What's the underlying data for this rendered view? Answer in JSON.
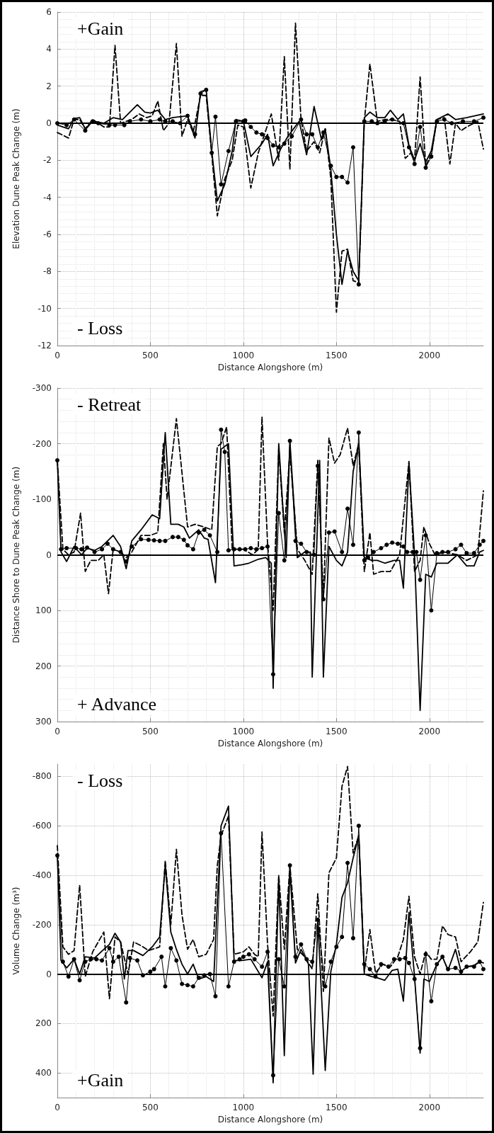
{
  "chart_data": [
    {
      "type": "line",
      "xlabel": "Distance Alongshore (m)",
      "ylabel": "Elevation Dune Peak Change (m)",
      "xlim": [
        0,
        2290
      ],
      "xticks": [
        0,
        500,
        1000,
        1500,
        2000
      ],
      "ylim": [
        -12,
        6
      ],
      "yticks": [
        -12,
        -10,
        -8,
        -6,
        -4,
        -2,
        0,
        2,
        4,
        6
      ],
      "grid": true,
      "annotations": [
        "+Gain",
        "- Loss"
      ],
      "ref_lines": [
        {
          "axis": "y",
          "value": 0,
          "color": "#000000"
        }
      ],
      "series": [
        {
          "color": "#000000",
          "line_style": "solid",
          "marker": "none",
          "x": [
            0,
            60,
            90,
            120,
            150,
            190,
            250,
            300,
            350,
            430,
            470,
            500,
            540,
            580,
            620,
            700,
            740,
            770,
            800,
            830,
            860,
            900,
            940,
            960,
            1000,
            1040,
            1100,
            1130,
            1160,
            1200,
            1240,
            1300,
            1340,
            1380,
            1420,
            1440,
            1470,
            1500,
            1530,
            1560,
            1590,
            1620,
            1650,
            1680,
            1720,
            1760,
            1790,
            1830,
            1860,
            1890,
            1920,
            1950,
            1980,
            2010,
            2040,
            2100,
            2140,
            2200,
            2290
          ],
          "values": [
            -0.1,
            -0.3,
            0.25,
            0.3,
            -0.3,
            0.1,
            0,
            0.3,
            0.2,
            1.0,
            0.6,
            0.55,
            0.7,
            0.2,
            0.3,
            0.4,
            -0.8,
            1.7,
            1.8,
            -1.5,
            -4.2,
            -3.3,
            -1.5,
            0.2,
            0.1,
            -1.8,
            -1.1,
            -0.6,
            -2.3,
            -1.4,
            -0.7,
            0.1,
            -1.7,
            0.9,
            -0.9,
            -0.3,
            -2.5,
            -6,
            -8.7,
            -6.9,
            -8.0,
            -8.5,
            0.3,
            0.6,
            0.3,
            0.3,
            0.7,
            0.2,
            0.5,
            -1.2,
            -2.0,
            -1.1,
            -2.1,
            -1.5,
            0.2,
            0.5,
            0.2,
            0.3,
            0.5
          ]
        },
        {
          "color": "#000000",
          "line_style": "dashed",
          "marker": "none",
          "x": [
            0,
            60,
            90,
            120,
            150,
            190,
            250,
            280,
            310,
            340,
            400,
            440,
            480,
            510,
            540,
            570,
            600,
            640,
            670,
            700,
            730,
            770,
            800,
            830,
            860,
            900,
            940,
            970,
            1000,
            1040,
            1080,
            1120,
            1150,
            1190,
            1220,
            1250,
            1280,
            1310,
            1340,
            1380,
            1410,
            1440,
            1470,
            1500,
            1530,
            1560,
            1590,
            1620,
            1650,
            1680,
            1720,
            1760,
            1800,
            1840,
            1870,
            1900,
            1920,
            1950,
            1980,
            2010,
            2040,
            2080,
            2110,
            2140,
            2170,
            2200,
            2260,
            2290
          ],
          "values": [
            -0.5,
            -0.8,
            0.2,
            0.2,
            -0.3,
            0.2,
            -0.2,
            -0.2,
            4.2,
            0.0,
            0.2,
            0.5,
            0.3,
            0.4,
            1.2,
            -0.4,
            0.0,
            4.3,
            -0.7,
            0.2,
            -0.5,
            1.5,
            1.5,
            -1.7,
            -5.0,
            -3.0,
            -2.0,
            -0.1,
            -0.2,
            -3.5,
            -1.6,
            -0.4,
            0.5,
            -2.0,
            3.6,
            -2.5,
            5.4,
            0.2,
            -1.5,
            -1.0,
            -1.6,
            -0.3,
            -3.0,
            -10.2,
            -6.9,
            -6.8,
            -8.5,
            -8.6,
            0.1,
            3.2,
            0.1,
            0.2,
            0.2,
            0.1,
            -1.9,
            -1.6,
            -2.0,
            2.5,
            -2.3,
            -1.7,
            0.2,
            0.3,
            -2.2,
            0.0,
            -0.4,
            -0.2,
            0.1,
            -1.4
          ]
        },
        {
          "color": "#000000",
          "line_style": "solid",
          "marker": "circle",
          "x": [
            0,
            50,
            90,
            150,
            190,
            220,
            280,
            310,
            360,
            390,
            450,
            500,
            550,
            580,
            620,
            660,
            700,
            740,
            770,
            800,
            830,
            850,
            880,
            920,
            960,
            1000,
            1010,
            1040,
            1070,
            1100,
            1130,
            1160,
            1190,
            1220,
            1260,
            1310,
            1340,
            1370,
            1400,
            1430,
            1470,
            1500,
            1530,
            1560,
            1590,
            1620,
            1650,
            1690,
            1720,
            1760,
            1800,
            1860,
            1890,
            1920,
            1950,
            1980,
            2010,
            2040,
            2080,
            2120,
            2180,
            2240,
            2290
          ],
          "values": [
            0,
            -0.1,
            0.2,
            -0.4,
            0.1,
            0.0,
            -0.1,
            -0.1,
            -0.1,
            0.1,
            0.2,
            0.1,
            0.2,
            0.1,
            0.1,
            0.0,
            0.4,
            -0.6,
            1.6,
            1.8,
            -1.6,
            0.35,
            -3.3,
            -1.5,
            0.1,
            0.1,
            0.15,
            -0.2,
            -0.5,
            -0.6,
            -0.8,
            -1.2,
            -1.3,
            -1.1,
            -0.7,
            0.2,
            -0.6,
            -0.6,
            -1.3,
            -0.5,
            -2.3,
            -2.9,
            -2.9,
            -3.2,
            -1.3,
            -8.7,
            0.1,
            0.1,
            0.0,
            0.1,
            0.2,
            0.0,
            -1.3,
            -2.2,
            -0.2,
            -2.4,
            -1.8,
            0.1,
            0.2,
            0.0,
            0.1,
            0.1,
            0.3
          ]
        }
      ]
    },
    {
      "type": "line",
      "xlabel": "Distance Alongshore (m)",
      "ylabel": "Distance Shore to Dune Peak Change (m)",
      "xlim": [
        0,
        2290
      ],
      "xticks": [
        0,
        500,
        1000,
        1500,
        2000
      ],
      "ylim": [
        300,
        -300
      ],
      "yticks": [
        -300,
        -200,
        -100,
        0,
        100,
        200,
        300
      ],
      "grid": true,
      "annotations": [
        "- Retreat",
        "+ Advance"
      ],
      "ref_lines": [
        {
          "axis": "y",
          "value": 0,
          "color": "#000000"
        }
      ],
      "series": [
        {
          "color": "#000000",
          "line_style": "solid",
          "marker": "none",
          "x": [
            0,
            20,
            50,
            90,
            130,
            160,
            200,
            240,
            300,
            340,
            370,
            400,
            450,
            510,
            550,
            580,
            610,
            650,
            680,
            710,
            760,
            790,
            810,
            850,
            880,
            920,
            950,
            990,
            1030,
            1080,
            1120,
            1150,
            1160,
            1190,
            1230,
            1250,
            1290,
            1330,
            1360,
            1370,
            1410,
            1430,
            1460,
            1500,
            1530,
            1560,
            1590,
            1620,
            1650,
            1690,
            1720,
            1760,
            1810,
            1840,
            1860,
            1890,
            1920,
            1950,
            1980,
            2010,
            2040,
            2100,
            2150,
            2200,
            2240,
            2270,
            2290
          ],
          "values": [
            -170,
            -5,
            12,
            -15,
            0,
            -12,
            -8,
            -15,
            -35,
            -15,
            25,
            -25,
            -45,
            -72,
            -65,
            -220,
            -55,
            -55,
            -50,
            -30,
            -45,
            -30,
            -28,
            50,
            -190,
            -200,
            20,
            18,
            15,
            8,
            5,
            15,
            240,
            -200,
            5,
            -205,
            5,
            -5,
            -5,
            220,
            -170,
            220,
            -15,
            10,
            20,
            -5,
            -150,
            -200,
            5,
            10,
            10,
            15,
            10,
            10,
            60,
            -165,
            0,
            280,
            35,
            40,
            15,
            15,
            0,
            20,
            20,
            -5,
            -8
          ]
        },
        {
          "color": "#000000",
          "line_style": "dashed",
          "marker": "none",
          "x": [
            0,
            30,
            60,
            90,
            125,
            150,
            180,
            220,
            250,
            275,
            300,
            340,
            370,
            400,
            450,
            500,
            540,
            570,
            590,
            640,
            700,
            740,
            790,
            830,
            860,
            880,
            910,
            940,
            1000,
            1050,
            1080,
            1100,
            1130,
            1160,
            1190,
            1220,
            1250,
            1290,
            1330,
            1370,
            1400,
            1430,
            1460,
            1490,
            1520,
            1560,
            1590,
            1620,
            1650,
            1680,
            1700,
            1740,
            1790,
            1840,
            1890,
            1920,
            1950,
            1970,
            2000,
            2030,
            2080,
            2150,
            2200,
            2260,
            2290
          ],
          "values": [
            -170,
            -10,
            0,
            -5,
            -75,
            30,
            10,
            10,
            0,
            70,
            -10,
            -5,
            5,
            -5,
            -35,
            -35,
            -40,
            -200,
            -100,
            -245,
            -50,
            -55,
            -50,
            -45,
            -195,
            -200,
            -230,
            -10,
            -10,
            0,
            -10,
            -248,
            -20,
            100,
            -190,
            -40,
            -185,
            -10,
            10,
            35,
            -170,
            80,
            -210,
            -165,
            -180,
            -228,
            -160,
            -200,
            30,
            -40,
            35,
            30,
            30,
            0,
            -168,
            30,
            10,
            -50,
            -20,
            0,
            -5,
            0,
            10,
            0,
            -115
          ]
        },
        {
          "color": "#000000",
          "line_style": "solid",
          "marker": "circle",
          "x": [
            0,
            20,
            50,
            100,
            130,
            160,
            200,
            240,
            270,
            300,
            340,
            370,
            400,
            450,
            490,
            520,
            550,
            580,
            620,
            650,
            680,
            700,
            730,
            760,
            790,
            820,
            860,
            880,
            900,
            920,
            950,
            980,
            1010,
            1040,
            1070,
            1100,
            1130,
            1160,
            1190,
            1220,
            1250,
            1280,
            1310,
            1340,
            1380,
            1400,
            1430,
            1460,
            1490,
            1530,
            1560,
            1590,
            1620,
            1650,
            1670,
            1700,
            1740,
            1770,
            1800,
            1830,
            1860,
            1880,
            1910,
            1930,
            1950,
            1980,
            2010,
            2040,
            2070,
            2100,
            2140,
            2170,
            2200,
            2240,
            2270,
            2290
          ],
          "values": [
            -170,
            -10,
            -12,
            -12,
            -10,
            -13,
            -5,
            -10,
            -20,
            -10,
            -5,
            12,
            -15,
            -28,
            -27,
            -26,
            -25,
            -25,
            -32,
            -32,
            -27,
            -17,
            -10,
            -40,
            -45,
            -35,
            -5,
            -225,
            -185,
            -8,
            -10,
            -10,
            -10,
            -12,
            -10,
            -12,
            -15,
            215,
            -75,
            10,
            -205,
            -25,
            -20,
            -5,
            0,
            -160,
            80,
            -40,
            -42,
            -5,
            -83,
            -18,
            -220,
            10,
            5,
            -5,
            -12,
            -18,
            -22,
            -20,
            -15,
            -5,
            -5,
            -5,
            45,
            -35,
            100,
            -3,
            -5,
            -5,
            -10,
            -18,
            -3,
            -3,
            -18,
            -25
          ]
        }
      ]
    },
    {
      "type": "line",
      "xlabel": "Distance Alongshore (m)",
      "ylabel": "Volume Change (m³)",
      "xlim": [
        0,
        2290
      ],
      "xticks": [
        0,
        500,
        1000,
        1500,
        2000
      ],
      "ylim": [
        500,
        -850
      ],
      "yticks": [
        -800,
        -600,
        -400,
        -200,
        0,
        200,
        400
      ],
      "grid": true,
      "annotations": [
        "- Loss",
        "+Gain"
      ],
      "ref_lines": [
        {
          "axis": "y",
          "value": 0,
          "color": "#000000"
        }
      ],
      "series": [
        {
          "color": "#000000",
          "line_style": "solid",
          "marker": "none",
          "x": [
            0,
            20,
            50,
            90,
            120,
            150,
            200,
            250,
            280,
            310,
            340,
            360,
            380,
            410,
            460,
            510,
            550,
            580,
            610,
            640,
            670,
            700,
            730,
            760,
            800,
            840,
            880,
            920,
            950,
            990,
            1040,
            1100,
            1130,
            1160,
            1190,
            1220,
            1250,
            1280,
            1310,
            1350,
            1375,
            1400,
            1440,
            1470,
            1500,
            1530,
            1560,
            1590,
            1620,
            1650,
            1690,
            1720,
            1760,
            1800,
            1830,
            1860,
            1890,
            1920,
            1950,
            1970,
            2000,
            2040,
            2070,
            2100,
            2140,
            2170,
            2200,
            2240,
            2270,
            2290
          ],
          "values": [
            -480,
            -55,
            -25,
            -60,
            0,
            -70,
            -65,
            -100,
            -120,
            -165,
            -130,
            20,
            -95,
            -95,
            -75,
            -110,
            -150,
            -440,
            -170,
            -100,
            -40,
            0,
            -40,
            20,
            10,
            30,
            -600,
            -680,
            -55,
            -55,
            -60,
            15,
            -50,
            440,
            -390,
            330,
            -430,
            -45,
            -100,
            -40,
            405,
            -220,
            390,
            -10,
            -120,
            -310,
            -370,
            -470,
            -560,
            0,
            10,
            15,
            25,
            -15,
            -20,
            110,
            -250,
            10,
            320,
            20,
            30,
            -40,
            -70,
            -15,
            -100,
            -10,
            -30,
            -35,
            -50,
            -45
          ]
        },
        {
          "color": "#000000",
          "line_style": "dashed",
          "marker": "none",
          "x": [
            0,
            30,
            60,
            90,
            120,
            150,
            190,
            250,
            280,
            310,
            340,
            380,
            410,
            450,
            490,
            550,
            580,
            610,
            640,
            670,
            700,
            730,
            760,
            800,
            840,
            860,
            880,
            920,
            950,
            1000,
            1030,
            1060,
            1080,
            1100,
            1130,
            1160,
            1190,
            1220,
            1250,
            1290,
            1330,
            1370,
            1400,
            1430,
            1460,
            1500,
            1530,
            1560,
            1590,
            1620,
            1650,
            1680,
            1710,
            1750,
            1790,
            1830,
            1860,
            1890,
            1920,
            1950,
            1980,
            2010,
            2040,
            2070,
            2100,
            2140,
            2170,
            2220,
            2260,
            2290
          ],
          "values": [
            -520,
            -110,
            -80,
            -95,
            -360,
            10,
            -90,
            -170,
            100,
            -150,
            -130,
            0,
            -130,
            -115,
            -95,
            -110,
            -460,
            -200,
            -505,
            -240,
            -100,
            -140,
            -70,
            -80,
            -140,
            -440,
            -560,
            -640,
            -80,
            -90,
            -110,
            -80,
            -70,
            -575,
            -120,
            170,
            -400,
            -100,
            -440,
            -100,
            -70,
            -20,
            -325,
            70,
            -410,
            -470,
            -760,
            -840,
            -490,
            -560,
            -10,
            -180,
            -5,
            -40,
            -30,
            -70,
            -140,
            -315,
            -70,
            0,
            -90,
            -60,
            -60,
            -195,
            -160,
            -150,
            -50,
            -90,
            -130,
            -290
          ]
        },
        {
          "color": "#000000",
          "line_style": "solid",
          "marker": "circle",
          "x": [
            0,
            30,
            60,
            90,
            120,
            150,
            180,
            210,
            240,
            280,
            300,
            330,
            370,
            390,
            430,
            460,
            500,
            520,
            560,
            580,
            610,
            640,
            670,
            700,
            730,
            760,
            790,
            820,
            850,
            880,
            920,
            950,
            980,
            1000,
            1030,
            1060,
            1100,
            1130,
            1160,
            1190,
            1220,
            1250,
            1280,
            1310,
            1340,
            1370,
            1400,
            1440,
            1470,
            1500,
            1530,
            1560,
            1590,
            1620,
            1650,
            1680,
            1710,
            1740,
            1780,
            1810,
            1840,
            1870,
            1890,
            1920,
            1950,
            1980,
            2010,
            2040,
            2070,
            2100,
            2140,
            2170,
            2200,
            2240,
            2270,
            2290
          ],
          "values": [
            -480,
            -50,
            10,
            -60,
            25,
            -50,
            -60,
            -60,
            -55,
            -105,
            -50,
            -70,
            115,
            -65,
            -55,
            5,
            -10,
            -20,
            -70,
            50,
            -105,
            -55,
            40,
            45,
            50,
            15,
            5,
            0,
            90,
            -570,
            50,
            -50,
            -60,
            -70,
            -80,
            -60,
            -30,
            -90,
            410,
            -60,
            50,
            -440,
            -70,
            -120,
            -60,
            -50,
            -220,
            50,
            -50,
            -110,
            -150,
            -450,
            -145,
            -600,
            -40,
            -20,
            10,
            -40,
            -30,
            -60,
            -60,
            -65,
            -45,
            20,
            300,
            -80,
            110,
            -40,
            -70,
            -20,
            -25,
            -10,
            -30,
            -30,
            -50,
            -20
          ]
        }
      ]
    }
  ]
}
